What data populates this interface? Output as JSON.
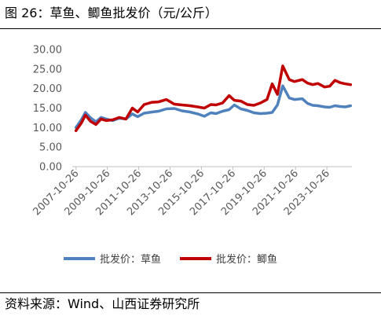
{
  "figure": {
    "title": "图 26：草鱼、鲫鱼批发价（元/公斤）",
    "source": "资料来源：Wind、山西证券研究所"
  },
  "chart_data": {
    "type": "line",
    "title": "",
    "xlabel": "",
    "ylabel": "",
    "ylim": [
      0,
      30
    ],
    "yticks": [
      "0.00",
      "5.00",
      "10.00",
      "15.00",
      "20.00",
      "25.00",
      "30.00"
    ],
    "xticks": [
      "2007-10-26",
      "2009-10-26",
      "2011-10-26",
      "2013-10-26",
      "2015-10-26",
      "2017-10-26",
      "2019-10-26",
      "2021-10-26",
      "2023-10-26"
    ],
    "grid": false,
    "legend_position": "bottom",
    "series": [
      {
        "name": "批发价：草鱼",
        "color": "#4f81bd",
        "points": [
          [
            "2007-10-26",
            10.0
          ],
          [
            "2008-03-01",
            12.0
          ],
          [
            "2008-06-01",
            13.9
          ],
          [
            "2008-10-01",
            12.5
          ],
          [
            "2009-02-01",
            11.5
          ],
          [
            "2009-06-01",
            12.6
          ],
          [
            "2009-10-01",
            12.2
          ],
          [
            "2010-03-01",
            11.8
          ],
          [
            "2010-08-01",
            12.4
          ],
          [
            "2011-01-01",
            12.2
          ],
          [
            "2011-06-01",
            13.5
          ],
          [
            "2011-10-01",
            12.8
          ],
          [
            "2012-03-01",
            13.7
          ],
          [
            "2012-09-01",
            14.0
          ],
          [
            "2013-02-01",
            14.2
          ],
          [
            "2013-08-01",
            14.8
          ],
          [
            "2014-02-01",
            14.9
          ],
          [
            "2014-08-01",
            14.3
          ],
          [
            "2015-02-01",
            14.0
          ],
          [
            "2015-08-01",
            13.5
          ],
          [
            "2016-01-01",
            12.9
          ],
          [
            "2016-06-01",
            13.8
          ],
          [
            "2016-10-01",
            13.6
          ],
          [
            "2017-03-01",
            14.2
          ],
          [
            "2017-08-01",
            14.6
          ],
          [
            "2017-12-01",
            15.8
          ],
          [
            "2018-05-01",
            14.8
          ],
          [
            "2018-10-01",
            14.4
          ],
          [
            "2019-03-01",
            13.8
          ],
          [
            "2019-08-01",
            13.6
          ],
          [
            "2020-01-01",
            13.7
          ],
          [
            "2020-05-01",
            13.9
          ],
          [
            "2020-09-01",
            15.8
          ],
          [
            "2021-01-01",
            20.7
          ],
          [
            "2021-06-01",
            17.6
          ],
          [
            "2021-10-01",
            17.2
          ],
          [
            "2022-04-01",
            17.4
          ],
          [
            "2022-08-01",
            16.2
          ],
          [
            "2022-12-01",
            15.7
          ],
          [
            "2023-04-01",
            15.6
          ],
          [
            "2023-09-01",
            15.3
          ],
          [
            "2024-01-01",
            15.2
          ],
          [
            "2024-05-01",
            15.6
          ],
          [
            "2024-09-01",
            15.4
          ],
          [
            "2025-01-01",
            15.3
          ],
          [
            "2025-05-01",
            15.6
          ]
        ]
      },
      {
        "name": "批发价：鲫鱼",
        "color": "#c00000",
        "points": [
          [
            "2007-10-26",
            9.2
          ],
          [
            "2008-03-01",
            11.2
          ],
          [
            "2008-06-01",
            13.2
          ],
          [
            "2008-10-01",
            11.6
          ],
          [
            "2009-02-01",
            10.8
          ],
          [
            "2009-06-01",
            12.2
          ],
          [
            "2009-10-01",
            11.8
          ],
          [
            "2010-03-01",
            12.0
          ],
          [
            "2010-08-01",
            12.6
          ],
          [
            "2011-01-01",
            12.2
          ],
          [
            "2011-06-01",
            15.0
          ],
          [
            "2011-10-01",
            14.0
          ],
          [
            "2012-03-01",
            15.9
          ],
          [
            "2012-09-01",
            16.5
          ],
          [
            "2013-02-01",
            16.6
          ],
          [
            "2013-08-01",
            17.2
          ],
          [
            "2014-02-01",
            16.0
          ],
          [
            "2014-08-01",
            15.8
          ],
          [
            "2015-02-01",
            15.6
          ],
          [
            "2015-08-01",
            15.3
          ],
          [
            "2016-01-01",
            15.0
          ],
          [
            "2016-06-01",
            15.9
          ],
          [
            "2016-10-01",
            15.8
          ],
          [
            "2017-03-01",
            16.3
          ],
          [
            "2017-08-01",
            18.2
          ],
          [
            "2017-12-01",
            17.0
          ],
          [
            "2018-05-01",
            16.8
          ],
          [
            "2018-10-01",
            15.9
          ],
          [
            "2019-03-01",
            15.7
          ],
          [
            "2019-08-01",
            16.3
          ],
          [
            "2020-01-01",
            17.2
          ],
          [
            "2020-05-01",
            21.2
          ],
          [
            "2020-09-01",
            18.5
          ],
          [
            "2021-01-01",
            25.8
          ],
          [
            "2021-06-01",
            22.3
          ],
          [
            "2021-10-01",
            21.8
          ],
          [
            "2022-04-01",
            22.3
          ],
          [
            "2022-08-01",
            21.4
          ],
          [
            "2022-12-01",
            21.0
          ],
          [
            "2023-04-01",
            21.3
          ],
          [
            "2023-09-01",
            20.4
          ],
          [
            "2024-01-01",
            20.6
          ],
          [
            "2024-05-01",
            22.1
          ],
          [
            "2024-09-01",
            21.5
          ],
          [
            "2025-01-01",
            21.2
          ],
          [
            "2025-05-01",
            21.0
          ]
        ]
      }
    ]
  }
}
